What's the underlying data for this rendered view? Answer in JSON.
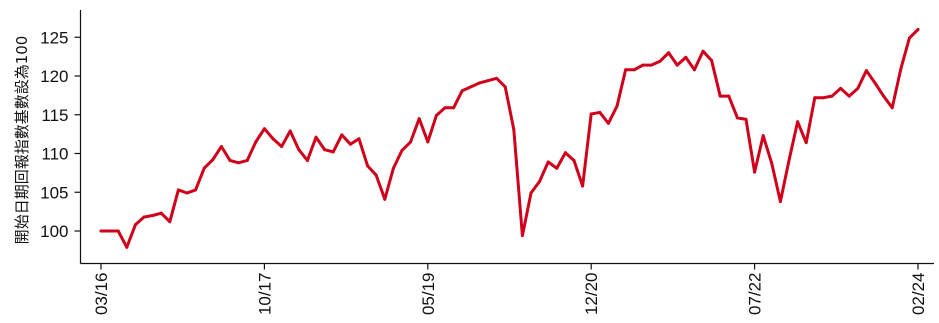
{
  "chart_data": {
    "type": "line",
    "title": "",
    "ylabel": "開始日期回報指數基數設為100",
    "xlabel": "",
    "ylim": [
      96,
      128
    ],
    "yticks": [
      100,
      105,
      110,
      115,
      120,
      125
    ],
    "xtick_labels": [
      "03/16",
      "10/17",
      "05/19",
      "12/20",
      "07/22",
      "02/24"
    ],
    "x_range_months": [
      "2016-03",
      "2024-02"
    ],
    "grid": false,
    "legend": "none",
    "series": [
      {
        "color": "#d0021b",
        "x": [
          "2016-03",
          "2016-04",
          "2016-05",
          "2016-06",
          "2016-07",
          "2016-08",
          "2016-09",
          "2016-10",
          "2016-11",
          "2016-12",
          "2017-01",
          "2017-02",
          "2017-03",
          "2017-04",
          "2017-05",
          "2017-06",
          "2017-07",
          "2017-08",
          "2017-09",
          "2017-10",
          "2017-11",
          "2017-12",
          "2018-01",
          "2018-02",
          "2018-03",
          "2018-04",
          "2018-05",
          "2018-06",
          "2018-07",
          "2018-08",
          "2018-09",
          "2018-10",
          "2018-11",
          "2018-12",
          "2019-01",
          "2019-02",
          "2019-03",
          "2019-04",
          "2019-05",
          "2019-06",
          "2019-07",
          "2019-08",
          "2019-09",
          "2019-10",
          "2019-11",
          "2019-12",
          "2020-01",
          "2020-02",
          "2020-03",
          "2020-04",
          "2020-05",
          "2020-06",
          "2020-07",
          "2020-08",
          "2020-09",
          "2020-10",
          "2020-11",
          "2020-12",
          "2021-01",
          "2021-02",
          "2021-03",
          "2021-04",
          "2021-05",
          "2021-06",
          "2021-07",
          "2021-08",
          "2021-09",
          "2021-10",
          "2021-11",
          "2021-12",
          "2022-01",
          "2022-02",
          "2022-03",
          "2022-04",
          "2022-05",
          "2022-06",
          "2022-07",
          "2022-08",
          "2022-09",
          "2022-10",
          "2022-11",
          "2022-12",
          "2023-01",
          "2023-02",
          "2023-03",
          "2023-04",
          "2023-05",
          "2023-06",
          "2023-07",
          "2023-08",
          "2023-09",
          "2023-10",
          "2023-11",
          "2023-12",
          "2024-01",
          "2024-02"
        ],
        "values": [
          100.0,
          100.0,
          100.0,
          97.9,
          100.8,
          101.8,
          102.0,
          102.3,
          101.2,
          105.3,
          104.9,
          105.3,
          108.1,
          109.2,
          110.9,
          109.1,
          108.8,
          109.1,
          111.5,
          113.2,
          111.9,
          110.9,
          112.9,
          110.5,
          109.1,
          112.1,
          110.5,
          110.2,
          112.4,
          111.2,
          111.9,
          108.4,
          107.2,
          104.1,
          108.1,
          110.4,
          111.5,
          114.5,
          111.5,
          114.9,
          115.9,
          115.9,
          118.1,
          118.6,
          119.1,
          119.4,
          119.7,
          118.6,
          113.1,
          99.4,
          104.9,
          106.4,
          108.9,
          108.1,
          110.1,
          109.1,
          105.8,
          115.1,
          115.3,
          113.9,
          116.1,
          120.8,
          120.8,
          121.4,
          121.4,
          121.9,
          123.0,
          121.4,
          122.4,
          120.8,
          123.2,
          122.0,
          117.4,
          117.4,
          114.6,
          114.4,
          107.6,
          112.3,
          108.7,
          103.8,
          109.1,
          114.1,
          111.4,
          117.2,
          117.2,
          117.4,
          118.4,
          117.4,
          118.4,
          120.7,
          119.1,
          117.4,
          115.9,
          120.9,
          124.9,
          126.0
        ]
      }
    ]
  }
}
